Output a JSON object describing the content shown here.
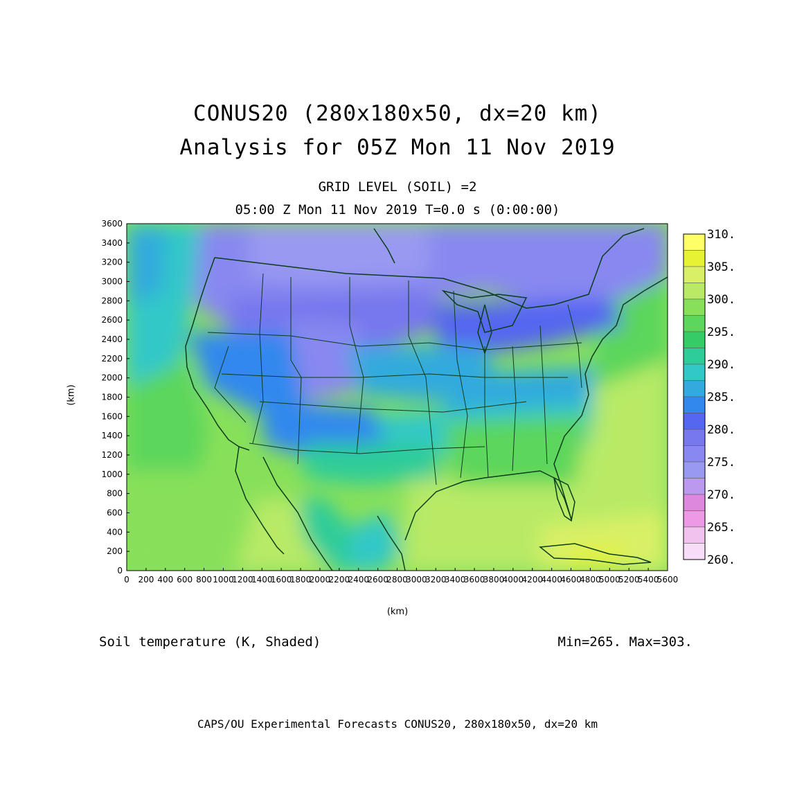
{
  "title_line1": "CONUS20 (280x180x50, dx=20 km)",
  "title_line2": "Analysis for 05Z Mon 11 Nov 2019",
  "subtitle_line1": "GRID LEVEL (SOIL) =2",
  "subtitle_line2": "05:00 Z Mon 11 Nov 2019   T=0.0 s (0:00:00)",
  "field_label": "Soil temperature (K, Shaded)",
  "minmax_label": "Min=265. Max=303.",
  "footer": "CAPS/OU Experimental Forecasts  CONUS20, 280x180x50, dx=20 km",
  "y_axis_label": "(km)",
  "x_axis_label": "(km)",
  "x_ticks": [
    "0",
    "200",
    "400",
    "600",
    "800",
    "1000",
    "1200",
    "1400",
    "1600",
    "1800",
    "2000",
    "2200",
    "2400",
    "2600",
    "2800",
    "3000",
    "3200",
    "3400",
    "3600",
    "3800",
    "4000",
    "4200",
    "4400",
    "4600",
    "4800",
    "5000",
    "5200",
    "5400",
    "5600"
  ],
  "y_ticks": [
    "0",
    "200",
    "400",
    "600",
    "800",
    "1000",
    "1200",
    "1400",
    "1600",
    "1800",
    "2000",
    "2200",
    "2400",
    "2600",
    "2800",
    "3000",
    "3200",
    "3400",
    "3600"
  ],
  "colorbar": {
    "labels": [
      "310.",
      "305.",
      "300.",
      "295.",
      "290.",
      "285.",
      "280.",
      "275.",
      "270.",
      "265.",
      "260."
    ],
    "colors": [
      "#ffff66",
      "#e6f233",
      "#d9f066",
      "#b8ea66",
      "#88e05a",
      "#5cd65c",
      "#33cc66",
      "#2ecc99",
      "#33c8c8",
      "#33aadd",
      "#3388ee",
      "#5566f0",
      "#7777ee",
      "#8888f0",
      "#9999f2",
      "#bb99ee",
      "#dd88dd",
      "#ee99e6",
      "#f2c2ee",
      "#f8ddf8"
    ]
  },
  "chart_data": {
    "type": "heatmap",
    "x_range_km": [
      0,
      5600
    ],
    "y_range_km": [
      0,
      3600
    ],
    "variable": "Soil temperature (K)",
    "min": 265,
    "max": 303,
    "levels_K": [
      260,
      262.5,
      265,
      267.5,
      270,
      272.5,
      275,
      277.5,
      280,
      282.5,
      285,
      287.5,
      290,
      292.5,
      295,
      297.5,
      300,
      302.5,
      305,
      307.5,
      310
    ]
  }
}
